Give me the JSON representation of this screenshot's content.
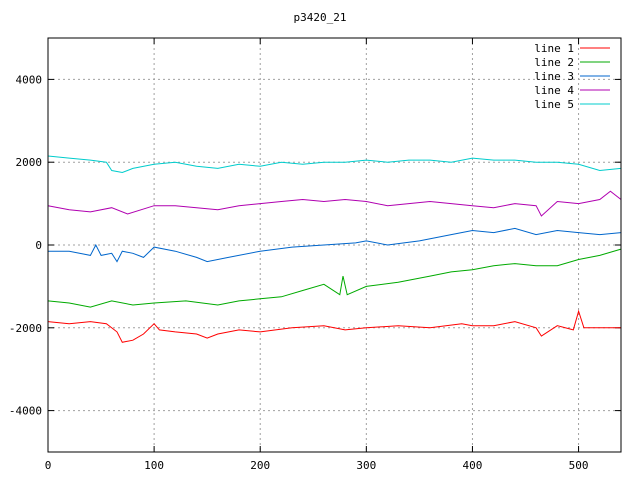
{
  "chart_data": {
    "type": "line",
    "title": "p3420_21",
    "xlabel": "",
    "ylabel": "",
    "xlim": [
      0,
      540
    ],
    "ylim": [
      -5000,
      5000
    ],
    "xticks": [
      0,
      100,
      200,
      300,
      400,
      500
    ],
    "yticks": [
      -4000,
      -2000,
      0,
      2000,
      4000
    ],
    "grid": true,
    "legend_position": "top-right",
    "series": [
      {
        "name": "line 1",
        "color": "#ff0000",
        "x": [
          0,
          20,
          40,
          55,
          65,
          70,
          80,
          90,
          100,
          105,
          120,
          140,
          150,
          160,
          180,
          200,
          230,
          260,
          280,
          300,
          330,
          360,
          390,
          400,
          420,
          440,
          460,
          465,
          480,
          495,
          500,
          505,
          520,
          540
        ],
        "y": [
          -1850,
          -1900,
          -1850,
          -1900,
          -2100,
          -2350,
          -2300,
          -2150,
          -1900,
          -2050,
          -2100,
          -2150,
          -2250,
          -2150,
          -2050,
          -2100,
          -2000,
          -1950,
          -2050,
          -2000,
          -1950,
          -2000,
          -1900,
          -1950,
          -1950,
          -1850,
          -2000,
          -2200,
          -1950,
          -2050,
          -1600,
          -2000,
          -2000,
          -2000
        ]
      },
      {
        "name": "line 2",
        "color": "#00aa00",
        "x": [
          0,
          20,
          40,
          60,
          80,
          100,
          130,
          160,
          180,
          200,
          220,
          240,
          260,
          275,
          278,
          282,
          300,
          330,
          360,
          380,
          400,
          420,
          440,
          460,
          480,
          500,
          520,
          540
        ],
        "y": [
          -1350,
          -1400,
          -1500,
          -1350,
          -1450,
          -1400,
          -1350,
          -1450,
          -1350,
          -1300,
          -1250,
          -1100,
          -950,
          -1200,
          -750,
          -1200,
          -1000,
          -900,
          -750,
          -650,
          -600,
          -500,
          -450,
          -500,
          -500,
          -350,
          -250,
          -100
        ]
      },
      {
        "name": "line 3",
        "color": "#0066cc",
        "x": [
          0,
          20,
          40,
          45,
          50,
          60,
          65,
          70,
          80,
          90,
          100,
          120,
          140,
          150,
          170,
          200,
          230,
          260,
          290,
          300,
          320,
          350,
          380,
          400,
          420,
          440,
          460,
          480,
          500,
          520,
          540
        ],
        "y": [
          -150,
          -150,
          -250,
          0,
          -250,
          -200,
          -400,
          -150,
          -200,
          -300,
          -50,
          -150,
          -300,
          -400,
          -300,
          -150,
          -50,
          0,
          50,
          100,
          0,
          100,
          250,
          350,
          300,
          400,
          250,
          350,
          300,
          250,
          300
        ]
      },
      {
        "name": "line 4",
        "color": "#b000b0",
        "x": [
          0,
          20,
          40,
          60,
          75,
          100,
          120,
          140,
          160,
          180,
          200,
          220,
          240,
          260,
          280,
          300,
          320,
          340,
          360,
          380,
          400,
          420,
          440,
          460,
          465,
          480,
          500,
          520,
          530,
          540
        ],
        "y": [
          950,
          850,
          800,
          900,
          750,
          950,
          950,
          900,
          850,
          950,
          1000,
          1050,
          1100,
          1050,
          1100,
          1050,
          950,
          1000,
          1050,
          1000,
          950,
          900,
          1000,
          950,
          700,
          1050,
          1000,
          1100,
          1300,
          1100
        ]
      },
      {
        "name": "line 5",
        "color": "#00cccc",
        "x": [
          0,
          20,
          40,
          55,
          60,
          70,
          80,
          100,
          120,
          140,
          160,
          180,
          200,
          220,
          240,
          260,
          280,
          300,
          320,
          340,
          360,
          380,
          400,
          420,
          440,
          460,
          480,
          500,
          520,
          540
        ],
        "y": [
          2150,
          2100,
          2050,
          2000,
          1800,
          1750,
          1850,
          1950,
          2000,
          1900,
          1850,
          1950,
          1900,
          2000,
          1950,
          2000,
          2000,
          2050,
          2000,
          2050,
          2050,
          2000,
          2100,
          2050,
          2050,
          2000,
          2000,
          1950,
          1800,
          1850
        ]
      }
    ]
  }
}
